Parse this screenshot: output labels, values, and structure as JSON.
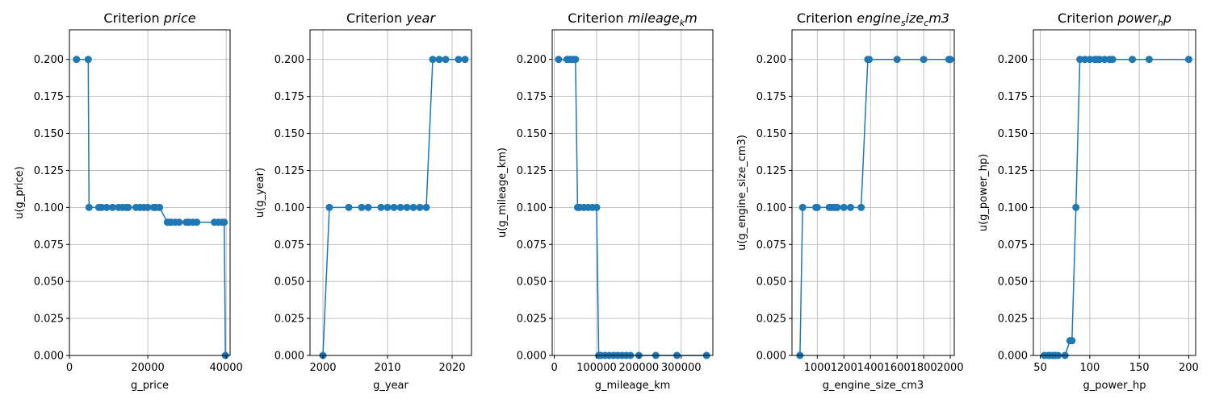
{
  "chart_data": [
    {
      "type": "line",
      "title": {
        "prefix": "Criterion ",
        "main": "price",
        "sub": "",
        "rest": ""
      },
      "xlabel": "g_price",
      "ylabel": "u(g_price)",
      "xlim": [
        0,
        41000
      ],
      "ylim": [
        0,
        0.22
      ],
      "xticks": [
        0,
        20000,
        40000
      ],
      "xtick_labels": [
        "0",
        "20000",
        "40000"
      ],
      "yticks": [
        0,
        0.025,
        0.05,
        0.075,
        0.1,
        0.125,
        0.15,
        0.175,
        0.2
      ],
      "ytick_labels": [
        "0.000",
        "0.025",
        "0.050",
        "0.075",
        "0.100",
        "0.125",
        "0.150",
        "0.175",
        "0.200"
      ],
      "grid": true,
      "color": "#1f77b4",
      "series": [
        {
          "x": [
            1800,
            4800,
            5000,
            7500,
            8200,
            9500,
            11000,
            12500,
            13500,
            14500,
            15000,
            17000,
            18000,
            19000,
            20000,
            21500,
            22000,
            23000,
            25000,
            25500,
            26000,
            27000,
            28000,
            29800,
            30500,
            31500,
            32500,
            37000,
            38000,
            39000,
            39500,
            39800
          ],
          "y": [
            0.2,
            0.2,
            0.1,
            0.1,
            0.1,
            0.1,
            0.1,
            0.1,
            0.1,
            0.1,
            0.1,
            0.1,
            0.1,
            0.1,
            0.1,
            0.1,
            0.1,
            0.1,
            0.09,
            0.09,
            0.09,
            0.09,
            0.09,
            0.09,
            0.09,
            0.09,
            0.09,
            0.09,
            0.09,
            0.09,
            0.09,
            0.0
          ]
        }
      ]
    },
    {
      "type": "line",
      "title": {
        "prefix": "Criterion ",
        "main": "year",
        "sub": "",
        "rest": ""
      },
      "xlabel": "g_year",
      "ylabel": "u(g_year)",
      "xlim": [
        1998,
        2023
      ],
      "ylim": [
        0,
        0.22
      ],
      "xticks": [
        2000,
        2010,
        2020
      ],
      "xtick_labels": [
        "2000",
        "2010",
        "2020"
      ],
      "yticks": [
        0,
        0.025,
        0.05,
        0.075,
        0.1,
        0.125,
        0.15,
        0.175,
        0.2
      ],
      "ytick_labels": [
        "0.000",
        "0.025",
        "0.050",
        "0.075",
        "0.100",
        "0.125",
        "0.150",
        "0.175",
        "0.200"
      ],
      "grid": true,
      "color": "#1f77b4",
      "series": [
        {
          "x": [
            2000,
            2001,
            2004,
            2006,
            2007,
            2009,
            2010,
            2011,
            2012,
            2013,
            2014,
            2015,
            2016,
            2017,
            2018,
            2019,
            2021,
            2022
          ],
          "y": [
            0.0,
            0.1,
            0.1,
            0.1,
            0.1,
            0.1,
            0.1,
            0.1,
            0.1,
            0.1,
            0.1,
            0.1,
            0.1,
            0.2,
            0.2,
            0.2,
            0.2,
            0.2
          ]
        }
      ]
    },
    {
      "type": "line",
      "title": {
        "prefix": "Criterion ",
        "main": "mileage",
        "sub": "k",
        "rest": "m"
      },
      "xlabel": "g_mileage_km",
      "ylabel": "u(g_mileage_km)",
      "xlim": [
        -5000,
        375000
      ],
      "ylim": [
        0,
        0.22
      ],
      "xticks": [
        0,
        100000,
        200000,
        300000
      ],
      "xtick_labels": [
        "0",
        "100000",
        "200000",
        "300000"
      ],
      "yticks": [
        0,
        0.025,
        0.05,
        0.075,
        0.1,
        0.125,
        0.15,
        0.175,
        0.2
      ],
      "ytick_labels": [
        "0.000",
        "0.025",
        "0.050",
        "0.075",
        "0.100",
        "0.125",
        "0.150",
        "0.175",
        "0.200"
      ],
      "grid": true,
      "color": "#1f77b4",
      "series": [
        {
          "x": [
            10000,
            30000,
            35000,
            40000,
            45000,
            50000,
            55000,
            60000,
            70000,
            80000,
            90000,
            100000,
            105000,
            110000,
            120000,
            130000,
            140000,
            150000,
            160000,
            170000,
            180000,
            200000,
            240000,
            290000,
            360000
          ],
          "y": [
            0.2,
            0.2,
            0.2,
            0.2,
            0.2,
            0.2,
            0.1,
            0.1,
            0.1,
            0.1,
            0.1,
            0.1,
            0.0,
            0.0,
            0.0,
            0.0,
            0.0,
            0.0,
            0.0,
            0.0,
            0.0,
            0.0,
            0.0,
            0.0,
            0.0
          ]
        }
      ]
    },
    {
      "type": "line",
      "title": {
        "prefix": "Criterion ",
        "main": "engine",
        "sub": "s",
        "rest": "ize",
        "sub2": "c",
        "rest2": "m3"
      },
      "xlabel": "g_engine_size_cm3",
      "ylabel": "u(g_engine_size_cm3)",
      "xlim": [
        810,
        2030
      ],
      "ylim": [
        0,
        0.22
      ],
      "xticks": [
        1000,
        1200,
        1400,
        1600,
        1800,
        2000
      ],
      "xtick_labels": [
        "1000",
        "1200",
        "1400",
        "1600",
        "1800",
        "2000"
      ],
      "yticks": [
        0,
        0.025,
        0.05,
        0.075,
        0.1,
        0.125,
        0.15,
        0.175,
        0.2
      ],
      "ytick_labels": [
        "0.000",
        "0.025",
        "0.050",
        "0.075",
        "0.100",
        "0.125",
        "0.150",
        "0.175",
        "0.200"
      ],
      "grid": true,
      "color": "#1f77b4",
      "series": [
        {
          "x": [
            870,
            890,
            990,
            1000,
            1090,
            1110,
            1130,
            1150,
            1200,
            1250,
            1330,
            1380,
            1390,
            1600,
            1800,
            1990,
            2000
          ],
          "y": [
            0.0,
            0.1,
            0.1,
            0.1,
            0.1,
            0.1,
            0.1,
            0.1,
            0.1,
            0.1,
            0.1,
            0.2,
            0.2,
            0.2,
            0.2,
            0.2,
            0.2
          ]
        }
      ]
    },
    {
      "type": "line",
      "title": {
        "prefix": "Criterion ",
        "main": "power",
        "sub": "h",
        "rest": "p"
      },
      "xlabel": "g_power_hp",
      "ylabel": "u(g_power_hp)",
      "xlim": [
        43,
        207
      ],
      "ylim": [
        0,
        0.22
      ],
      "xticks": [
        50,
        100,
        150,
        200
      ],
      "xtick_labels": [
        "50",
        "100",
        "150",
        "200"
      ],
      "yticks": [
        0,
        0.025,
        0.05,
        0.075,
        0.1,
        0.125,
        0.15,
        0.175,
        0.2
      ],
      "ytick_labels": [
        "0.000",
        "0.025",
        "0.050",
        "0.075",
        "0.100",
        "0.125",
        "0.150",
        "0.175",
        "0.200"
      ],
      "grid": true,
      "color": "#1f77b4",
      "series": [
        {
          "x": [
            54,
            58,
            60,
            63,
            65,
            68,
            75,
            80,
            82,
            86,
            90,
            95,
            100,
            105,
            108,
            110,
            115,
            120,
            123,
            143,
            160,
            200
          ],
          "y": [
            0.0,
            0.0,
            0.0,
            0.0,
            0.0,
            0.0,
            0.0,
            0.01,
            0.01,
            0.1,
            0.2,
            0.2,
            0.2,
            0.2,
            0.2,
            0.2,
            0.2,
            0.2,
            0.2,
            0.2,
            0.2,
            0.2
          ]
        }
      ]
    }
  ]
}
